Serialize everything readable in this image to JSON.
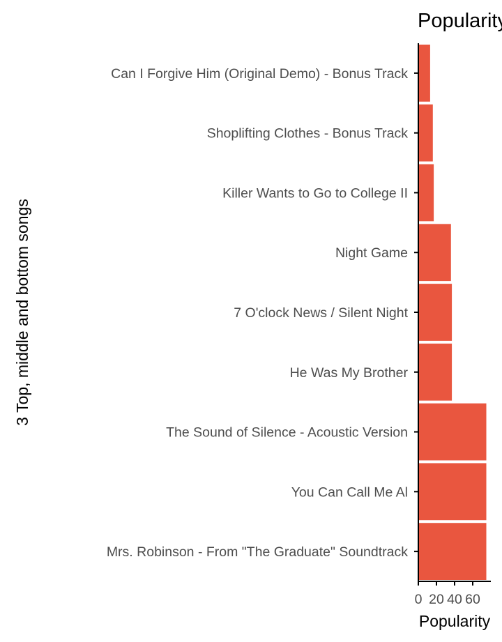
{
  "chart_data": {
    "type": "bar",
    "orientation": "horizontal",
    "title": "Popularity of Simon & Garfunkel songs",
    "xlabel": "Popularity",
    "ylabel": "3 Top, middle and bottom songs",
    "xlim": [
      0,
      80
    ],
    "xticks": [
      0,
      20,
      40,
      60
    ],
    "categories": [
      "Can I Forgive Him (Original Demo) - Bonus Track",
      "Shoplifting Clothes - Bonus Track",
      "Killer Wants to Go to College II",
      "Night Game",
      "7 O'clock News / Silent Night",
      "He Was My Brother",
      "The Sound of Silence - Acoustic Version",
      "You Can Call Me Al",
      "Mrs. Robinson - From \"The Graduate\" Soundtrack"
    ],
    "values": [
      13,
      16,
      17,
      36,
      37,
      37,
      75,
      75,
      75
    ],
    "colors": {
      "bar": "#E9563F",
      "axis": "#000000",
      "tick_text": "#4d4d4d"
    },
    "grid": false,
    "legend": "none"
  }
}
